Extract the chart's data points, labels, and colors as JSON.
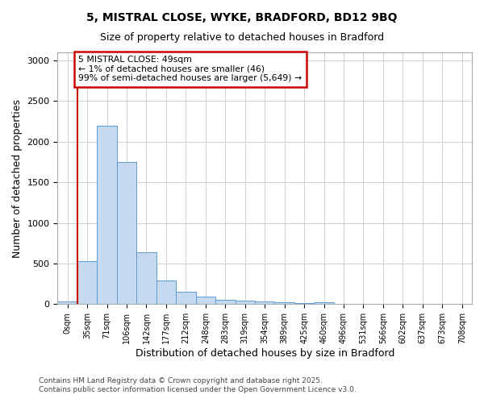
{
  "title1": "5, MISTRAL CLOSE, WYKE, BRADFORD, BD12 9BQ",
  "title2": "Size of property relative to detached houses in Bradford",
  "xlabel": "Distribution of detached houses by size in Bradford",
  "ylabel": "Number of detached properties",
  "bin_labels": [
    "0sqm",
    "35sqm",
    "71sqm",
    "106sqm",
    "142sqm",
    "177sqm",
    "212sqm",
    "248sqm",
    "283sqm",
    "319sqm",
    "354sqm",
    "389sqm",
    "425sqm",
    "460sqm",
    "496sqm",
    "531sqm",
    "566sqm",
    "602sqm",
    "637sqm",
    "673sqm",
    "708sqm"
  ],
  "bar_values": [
    30,
    530,
    2200,
    1750,
    640,
    290,
    150,
    90,
    55,
    40,
    30,
    20,
    15,
    25,
    5,
    5,
    3,
    3,
    2,
    2,
    0
  ],
  "bar_color": "#c5d9f0",
  "bar_edge_color": "#5b9bd5",
  "red_line_x": 1,
  "annotation_title": "5 MISTRAL CLOSE: 49sqm",
  "annotation_line1": "← 1% of detached houses are smaller (46)",
  "annotation_line2": "99% of semi-detached houses are larger (5,649) →",
  "annotation_box_color": "#ffffff",
  "annotation_box_edge": "#cc0000",
  "red_line_color": "#cc0000",
  "ylim": [
    0,
    3100
  ],
  "yticks": [
    0,
    500,
    1000,
    1500,
    2000,
    2500,
    3000
  ],
  "footer1": "Contains HM Land Registry data © Crown copyright and database right 2025.",
  "footer2": "Contains public sector information licensed under the Open Government Licence v3.0.",
  "background_color": "#ffffff",
  "grid_color": "#d0d0d0"
}
